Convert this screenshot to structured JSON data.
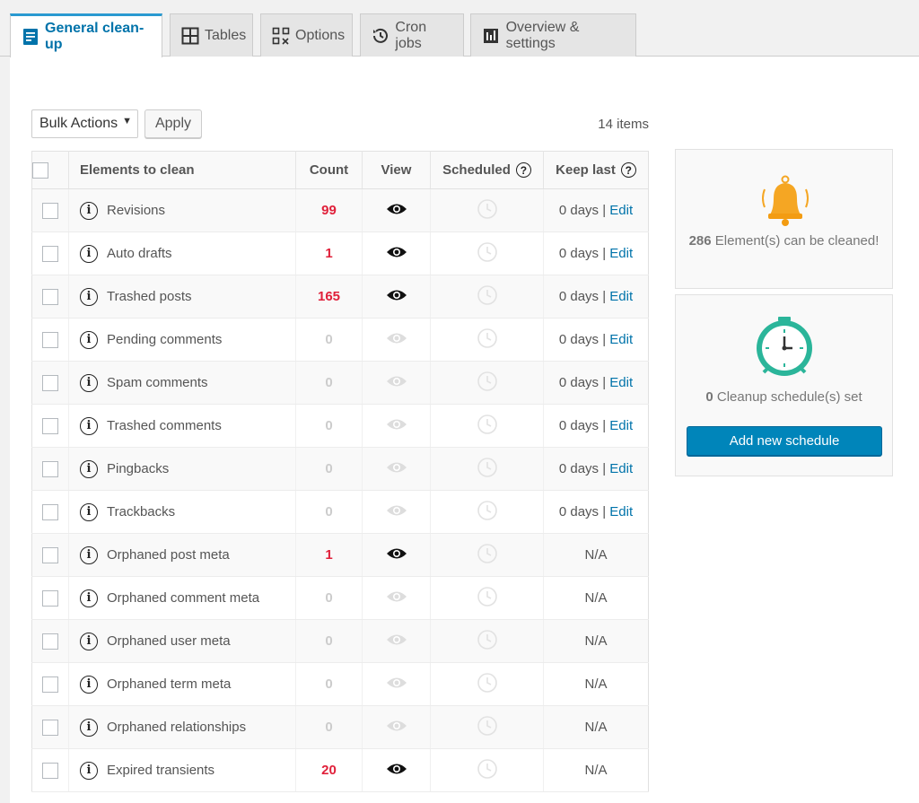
{
  "tabs": [
    {
      "label": "General clean-up",
      "icon": "document-list-icon"
    },
    {
      "label": "Tables",
      "icon": "table-grid-icon"
    },
    {
      "label": "Options",
      "icon": "options-grid-icon"
    },
    {
      "label": "Cron jobs",
      "icon": "history-clock-icon"
    },
    {
      "label": "Overview & settings",
      "icon": "overview-settings-icon"
    }
  ],
  "toolbar": {
    "bulk_label": "Bulk Actions",
    "apply_label": "Apply",
    "items_count": "14 items"
  },
  "table": {
    "headers": {
      "elements": "Elements to clean",
      "count": "Count",
      "view": "View",
      "scheduled": "Scheduled",
      "keep_last": "Keep last"
    },
    "rows": [
      {
        "name": "Revisions",
        "count": "99",
        "active": true,
        "keep": "0 days",
        "edit": "Edit"
      },
      {
        "name": "Auto drafts",
        "count": "1",
        "active": true,
        "keep": "0 days",
        "edit": "Edit"
      },
      {
        "name": "Trashed posts",
        "count": "165",
        "active": true,
        "keep": "0 days",
        "edit": "Edit"
      },
      {
        "name": "Pending comments",
        "count": "0",
        "active": false,
        "keep": "0 days",
        "edit": "Edit"
      },
      {
        "name": "Spam comments",
        "count": "0",
        "active": false,
        "keep": "0 days",
        "edit": "Edit"
      },
      {
        "name": "Trashed comments",
        "count": "0",
        "active": false,
        "keep": "0 days",
        "edit": "Edit"
      },
      {
        "name": "Pingbacks",
        "count": "0",
        "active": false,
        "keep": "0 days",
        "edit": "Edit"
      },
      {
        "name": "Trackbacks",
        "count": "0",
        "active": false,
        "keep": "0 days",
        "edit": "Edit"
      },
      {
        "name": "Orphaned post meta",
        "count": "1",
        "active": true,
        "keep": "N/A",
        "edit": ""
      },
      {
        "name": "Orphaned comment meta",
        "count": "0",
        "active": false,
        "keep": "N/A",
        "edit": ""
      },
      {
        "name": "Orphaned user meta",
        "count": "0",
        "active": false,
        "keep": "N/A",
        "edit": ""
      },
      {
        "name": "Orphaned term meta",
        "count": "0",
        "active": false,
        "keep": "N/A",
        "edit": ""
      },
      {
        "name": "Orphaned relationships",
        "count": "0",
        "active": false,
        "keep": "N/A",
        "edit": ""
      },
      {
        "name": "Expired transients",
        "count": "20",
        "active": true,
        "keep": "N/A",
        "edit": ""
      }
    ]
  },
  "summary": {
    "elements_count": "286",
    "elements_text": "Element(s) can be cleaned!",
    "schedules_count": "0",
    "schedules_text": "Cleanup schedule(s) set",
    "add_schedule_label": "Add new schedule"
  },
  "colors": {
    "accent": "#0073aa",
    "count_red": "#e0203a",
    "bell": "#f5a623",
    "clock": "#2bb59a",
    "button": "#0085ba"
  }
}
